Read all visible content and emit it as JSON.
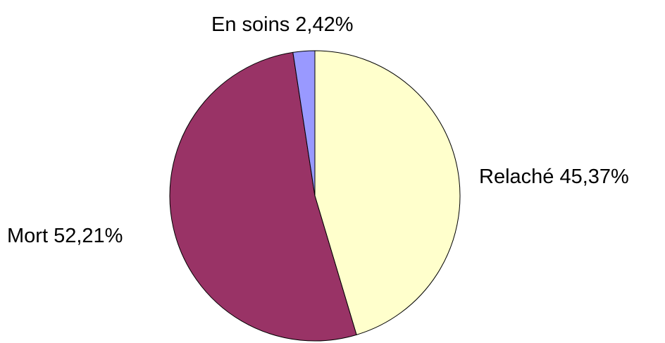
{
  "chart_data": {
    "type": "pie",
    "categories": [
      "Relaché",
      "Mort",
      "En soins"
    ],
    "values": [
      45.37,
      52.21,
      2.42
    ],
    "value_labels": [
      "45,37%",
      "52,21%",
      "2,42%"
    ],
    "colors": [
      "#ffffcc",
      "#993366",
      "#9999ff"
    ]
  }
}
